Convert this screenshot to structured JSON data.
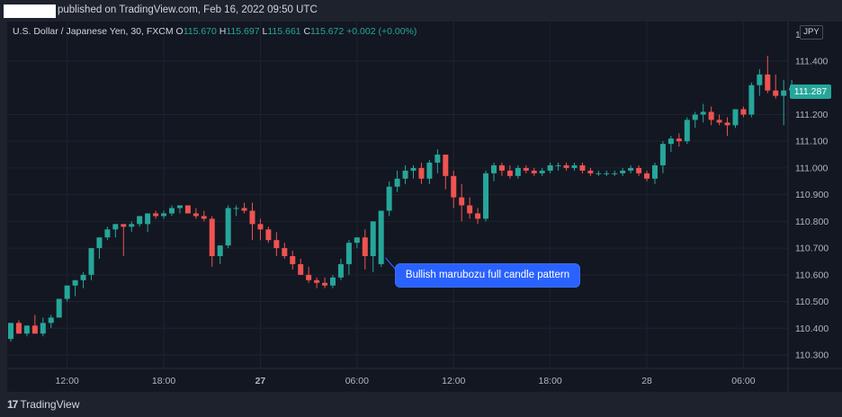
{
  "header": {
    "published_text": "published on TradingView.com, Feb 16, 2022 09:50 UTC"
  },
  "legend": {
    "symbol": "U.S. Dollar / Japanese Yen, 30, FXCM",
    "open_label": "O",
    "open": "115.670",
    "high_label": "H",
    "high": "115.697",
    "low_label": "L",
    "low": "115.661",
    "close_label": "C",
    "close": "115.672",
    "change": "+0.002 (+0.00%)"
  },
  "currency_button": "JPY",
  "current_price_tag": "111.287",
  "callout": "Bullish marubozu full candle pattern",
  "footer": {
    "brand": "TradingView",
    "logo_mark": "17"
  },
  "colors": {
    "up": "#26a69a",
    "down": "#ef5350",
    "background": "#131722",
    "callout": "#2962ff"
  },
  "chart_data": {
    "type": "candlestick",
    "ylim": [
      110.25,
      111.55
    ],
    "y_ticks": [
      "111.400",
      "111.200",
      "111.100",
      "111.000",
      "110.900",
      "110.800",
      "110.700",
      "110.600",
      "110.500",
      "110.400",
      "110.300"
    ],
    "y_tick_values": [
      111.4,
      111.2,
      111.1,
      111.0,
      110.9,
      110.8,
      110.7,
      110.6,
      110.5,
      110.4,
      110.3
    ],
    "y_tick_partial": "1",
    "x_ticks": [
      {
        "label": "12:00",
        "bar": 7,
        "bold": false
      },
      {
        "label": "18:00",
        "bar": 19,
        "bold": false
      },
      {
        "label": "27",
        "bar": 31,
        "bold": true
      },
      {
        "label": "06:00",
        "bar": 43,
        "bold": false
      },
      {
        "label": "12:00",
        "bar": 55,
        "bold": false
      },
      {
        "label": "18:00",
        "bar": 67,
        "bold": false
      },
      {
        "label": "28",
        "bar": 79,
        "bold": false
      },
      {
        "label": "06:00",
        "bar": 91,
        "bold": false
      }
    ],
    "highlight_bar": 46,
    "candles": [
      [
        110.36,
        110.42,
        110.35,
        110.42
      ],
      [
        110.42,
        110.43,
        110.38,
        110.38
      ],
      [
        110.38,
        110.41,
        110.37,
        110.41
      ],
      [
        110.41,
        110.45,
        110.38,
        110.38
      ],
      [
        110.38,
        110.44,
        110.37,
        110.42
      ],
      [
        110.42,
        110.45,
        110.4,
        110.44
      ],
      [
        110.44,
        110.51,
        110.44,
        110.51
      ],
      [
        110.51,
        110.56,
        110.5,
        110.56
      ],
      [
        110.56,
        110.58,
        110.52,
        110.58
      ],
      [
        110.58,
        110.61,
        110.55,
        110.6
      ],
      [
        110.6,
        110.7,
        110.58,
        110.7
      ],
      [
        110.7,
        110.74,
        110.66,
        110.74
      ],
      [
        110.74,
        110.78,
        110.73,
        110.77
      ],
      [
        110.77,
        110.79,
        110.74,
        110.79
      ],
      [
        110.79,
        110.79,
        110.67,
        110.78
      ],
      [
        110.78,
        110.8,
        110.76,
        110.79
      ],
      [
        110.79,
        110.82,
        110.78,
        110.82
      ],
      [
        110.79,
        110.83,
        110.76,
        110.83
      ],
      [
        110.83,
        110.84,
        110.81,
        110.82
      ],
      [
        110.82,
        110.84,
        110.81,
        110.83
      ],
      [
        110.83,
        110.86,
        110.82,
        110.85
      ],
      [
        110.85,
        110.86,
        110.83,
        110.86
      ],
      [
        110.86,
        110.86,
        110.83,
        110.83
      ],
      [
        110.83,
        110.85,
        110.81,
        110.82
      ],
      [
        110.82,
        110.84,
        110.8,
        110.81
      ],
      [
        110.81,
        110.82,
        110.63,
        110.67
      ],
      [
        110.67,
        110.71,
        110.64,
        110.71
      ],
      [
        110.71,
        110.86,
        110.7,
        110.85
      ],
      [
        110.85,
        110.86,
        110.82,
        110.85
      ],
      [
        110.85,
        110.87,
        110.83,
        110.84
      ],
      [
        110.84,
        110.87,
        110.73,
        110.79
      ],
      [
        110.79,
        110.81,
        110.73,
        110.77
      ],
      [
        110.77,
        110.78,
        110.72,
        110.73
      ],
      [
        110.73,
        110.76,
        110.67,
        110.7
      ],
      [
        110.7,
        110.72,
        110.66,
        110.67
      ],
      [
        110.67,
        110.69,
        110.62,
        110.64
      ],
      [
        110.64,
        110.66,
        110.6,
        110.6
      ],
      [
        110.6,
        110.63,
        110.57,
        110.58
      ],
      [
        110.58,
        110.59,
        110.55,
        110.57
      ],
      [
        110.57,
        110.59,
        110.55,
        110.56
      ],
      [
        110.56,
        110.6,
        110.55,
        110.59
      ],
      [
        110.59,
        110.66,
        110.58,
        110.64
      ],
      [
        110.64,
        110.73,
        110.6,
        110.72
      ],
      [
        110.72,
        110.74,
        110.7,
        110.74
      ],
      [
        110.74,
        110.77,
        110.62,
        110.67
      ],
      [
        110.67,
        110.8,
        110.61,
        110.8
      ],
      [
        110.64,
        110.84,
        110.63,
        110.84
      ],
      [
        110.84,
        110.95,
        110.82,
        110.93
      ],
      [
        110.93,
        110.99,
        110.91,
        110.96
      ],
      [
        110.96,
        111.01,
        110.94,
        110.99
      ],
      [
        110.99,
        111.01,
        110.96,
        111.0
      ],
      [
        111.0,
        111.02,
        110.94,
        110.96
      ],
      [
        110.96,
        111.03,
        110.94,
        111.02
      ],
      [
        111.02,
        111.07,
        110.98,
        111.05
      ],
      [
        111.05,
        111.05,
        110.92,
        110.97
      ],
      [
        110.97,
        110.99,
        110.85,
        110.89
      ],
      [
        110.89,
        110.94,
        110.8,
        110.86
      ],
      [
        110.86,
        110.89,
        110.81,
        110.83
      ],
      [
        110.83,
        110.85,
        110.79,
        110.81
      ],
      [
        110.81,
        110.99,
        110.8,
        110.98
      ],
      [
        110.98,
        111.02,
        110.95,
        111.01
      ],
      [
        111.01,
        111.02,
        110.97,
        110.99
      ],
      [
        110.99,
        111.01,
        110.96,
        110.97
      ],
      [
        110.97,
        111.01,
        110.96,
        111.0
      ],
      [
        111.0,
        111.01,
        110.98,
        110.99
      ],
      [
        110.99,
        111.0,
        110.97,
        110.98
      ],
      [
        110.98,
        111.0,
        110.97,
        110.99
      ],
      [
        110.99,
        111.02,
        110.98,
        111.01
      ],
      [
        111.01,
        111.02,
        110.99,
        111.01
      ],
      [
        111.01,
        111.02,
        110.99,
        111.0
      ],
      [
        111.0,
        111.02,
        110.99,
        111.01
      ],
      [
        111.01,
        111.02,
        110.98,
        110.99
      ],
      [
        110.99,
        111.0,
        110.97,
        110.98
      ],
      [
        110.98,
        110.99,
        110.97,
        110.98
      ],
      [
        110.98,
        110.99,
        110.97,
        110.98
      ],
      [
        110.98,
        110.99,
        110.97,
        110.98
      ],
      [
        110.98,
        111.0,
        110.97,
        110.99
      ],
      [
        110.99,
        111.01,
        110.98,
        111.0
      ],
      [
        111.0,
        111.01,
        110.97,
        110.98
      ],
      [
        110.98,
        110.99,
        110.95,
        110.96
      ],
      [
        110.96,
        111.02,
        110.94,
        111.01
      ],
      [
        111.01,
        111.1,
        110.98,
        111.09
      ],
      [
        111.09,
        111.12,
        111.06,
        111.11
      ],
      [
        111.11,
        111.13,
        111.08,
        111.1
      ],
      [
        111.1,
        111.19,
        111.09,
        111.18
      ],
      [
        111.18,
        111.21,
        111.15,
        111.2
      ],
      [
        111.2,
        111.24,
        111.17,
        111.21
      ],
      [
        111.21,
        111.23,
        111.16,
        111.18
      ],
      [
        111.18,
        111.2,
        111.16,
        111.17
      ],
      [
        111.17,
        111.19,
        111.12,
        111.16
      ],
      [
        111.16,
        111.22,
        111.15,
        111.22
      ],
      [
        111.22,
        111.23,
        111.19,
        111.2
      ],
      [
        111.2,
        111.32,
        111.19,
        111.31
      ],
      [
        111.31,
        111.37,
        111.27,
        111.35
      ],
      [
        111.35,
        111.42,
        111.28,
        111.29
      ],
      [
        111.29,
        111.35,
        111.26,
        111.27
      ],
      [
        111.27,
        111.33,
        111.16,
        111.29
      ],
      [
        111.29,
        111.33,
        111.26,
        111.3
      ]
    ]
  }
}
